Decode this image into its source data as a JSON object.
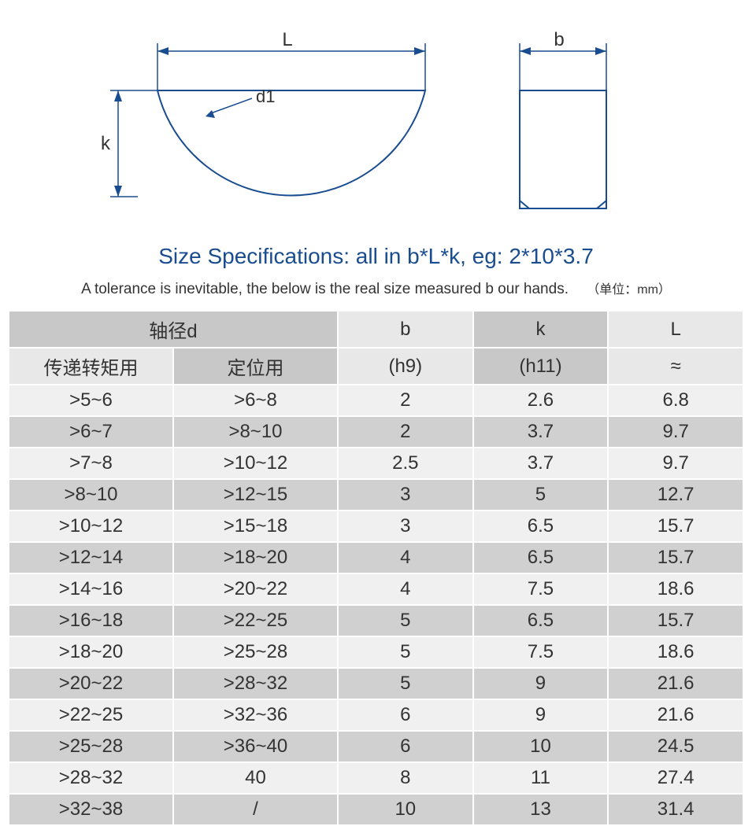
{
  "diagram": {
    "label_L": "L",
    "label_b": "b",
    "label_k": "k",
    "label_d1": "d1",
    "stroke_color": "#1a4d8f",
    "stroke_width": 2
  },
  "title": "Size Specifications: all in b*L*k, eg: 2*10*3.7",
  "subtitle": "A tolerance is inevitable, the below is the real size measured b our hands.",
  "unit_label": "（单位：mm）",
  "table": {
    "header_top": {
      "col_d": "轴径d",
      "col_b": "b",
      "col_k": "k",
      "col_L": "L"
    },
    "header_sub": {
      "col_d1": "传递转矩用",
      "col_d2": "定位用",
      "col_b": "(h9)",
      "col_k": "(h11)",
      "col_L": "≈"
    },
    "rows": [
      {
        "d1": ">5~6",
        "d2": ">6~8",
        "b": "2",
        "k": "2.6",
        "L": "6.8"
      },
      {
        "d1": ">6~7",
        "d2": ">8~10",
        "b": "2",
        "k": "3.7",
        "L": "9.7"
      },
      {
        "d1": ">7~8",
        "d2": ">10~12",
        "b": "2.5",
        "k": "3.7",
        "L": "9.7"
      },
      {
        "d1": ">8~10",
        "d2": ">12~15",
        "b": "3",
        "k": "5",
        "L": "12.7"
      },
      {
        "d1": ">10~12",
        "d2": ">15~18",
        "b": "3",
        "k": "6.5",
        "L": "15.7"
      },
      {
        "d1": ">12~14",
        "d2": ">18~20",
        "b": "4",
        "k": "6.5",
        "L": "15.7"
      },
      {
        "d1": ">14~16",
        "d2": ">20~22",
        "b": "4",
        "k": "7.5",
        "L": "18.6"
      },
      {
        "d1": ">16~18",
        "d2": ">22~25",
        "b": "5",
        "k": "6.5",
        "L": "15.7"
      },
      {
        "d1": ">18~20",
        "d2": ">25~28",
        "b": "5",
        "k": "7.5",
        "L": "18.6"
      },
      {
        "d1": ">20~22",
        "d2": ">28~32",
        "b": "5",
        "k": "9",
        "L": "21.6"
      },
      {
        "d1": ">22~25",
        "d2": ">32~36",
        "b": "6",
        "k": "9",
        "L": "21.6"
      },
      {
        "d1": ">25~28",
        "d2": ">36~40",
        "b": "6",
        "k": "10",
        "L": "24.5"
      },
      {
        "d1": ">28~32",
        "d2": "40",
        "b": "8",
        "k": "11",
        "L": "27.4"
      },
      {
        "d1": ">32~38",
        "d2": "/",
        "b": "10",
        "k": "13",
        "L": "31.4"
      }
    ],
    "row_colors": {
      "light": "#f0f0f0",
      "dark": "#d0d0d0"
    },
    "header_colors": {
      "dark": "#c8c8c8",
      "light": "#e8e8e8"
    },
    "border_color": "#ffffff",
    "text_color": "#333333",
    "font_size": 24
  }
}
